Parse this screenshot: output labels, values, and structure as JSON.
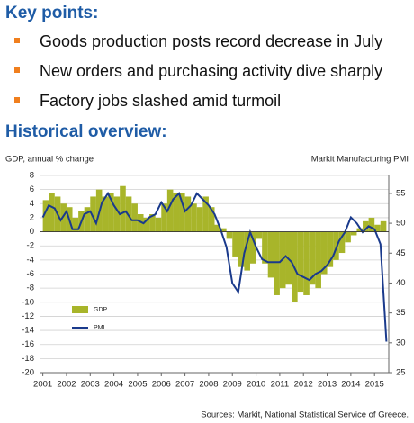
{
  "header": {
    "title": "Key points:"
  },
  "bullets": [
    "Goods production posts record decrease in July",
    "New orders and purchasing activity dive sharply",
    "Factory jobs slashed amid turmoil"
  ],
  "section_title": "Historical overview:",
  "chart_data": {
    "type": "combo",
    "ylabel": "GDP, annual % change",
    "y2label": "Markit Manufacturing PMI",
    "source": "Sources: Markit, National Statistical Service of Greece.",
    "x": [
      2001,
      2001.25,
      2001.5,
      2001.75,
      2002,
      2002.25,
      2002.5,
      2002.75,
      2003,
      2003.25,
      2003.5,
      2003.75,
      2004,
      2004.25,
      2004.5,
      2004.75,
      2005,
      2005.25,
      2005.5,
      2005.75,
      2006,
      2006.25,
      2006.5,
      2006.75,
      2007,
      2007.25,
      2007.5,
      2007.75,
      2008,
      2008.25,
      2008.5,
      2008.75,
      2009,
      2009.25,
      2009.5,
      2009.75,
      2010,
      2010.25,
      2010.5,
      2010.75,
      2011,
      2011.25,
      2011.5,
      2011.75,
      2012,
      2012.25,
      2012.5,
      2012.75,
      2013,
      2013.25,
      2013.5,
      2013.75,
      2014,
      2014.25,
      2014.5,
      2014.75,
      2015,
      2015.25,
      2015.5
    ],
    "series": [
      {
        "name": "GDP",
        "color": "#a8b52a",
        "values": [
          4.5,
          5.5,
          5,
          4,
          3.5,
          2,
          3,
          3.5,
          5,
          6,
          5,
          5.5,
          5,
          6.5,
          5,
          4,
          2.5,
          2,
          2.5,
          2,
          4,
          6,
          5.5,
          5.5,
          5,
          4,
          3.5,
          5,
          3.5,
          1,
          0.5,
          -1,
          -3.5,
          -5,
          -5.5,
          -4.5,
          -1,
          -4.5,
          -6.5,
          -9,
          -8,
          -7.5,
          -10,
          -8.5,
          -9,
          -7.5,
          -8,
          -6,
          -5,
          -4,
          -3,
          -1.5,
          -0.5,
          0.5,
          1.5,
          2,
          1,
          1.5,
          null
        ]
      },
      {
        "name": "PMI",
        "color": "#1a3a8c",
        "axis": "y2",
        "values": [
          51,
          53,
          52.5,
          50.5,
          52,
          49,
          49,
          51.5,
          52,
          50,
          53.5,
          55,
          53,
          51.5,
          52,
          50.5,
          50.5,
          50,
          51,
          51.5,
          53.5,
          52,
          54,
          55,
          52,
          53,
          55,
          54,
          53,
          51.5,
          49,
          46,
          40,
          38.5,
          45,
          48.5,
          46,
          44,
          43.5,
          43.5,
          43.5,
          44.5,
          43.5,
          41.5,
          41,
          40.5,
          41.5,
          42,
          43,
          44.5,
          47,
          48.5,
          51,
          50,
          48.5,
          49.5,
          49,
          46.5,
          30.2
        ]
      }
    ],
    "xlim": [
      2000.9,
      2015.6
    ],
    "xticks": [
      2001,
      2002,
      2003,
      2004,
      2005,
      2006,
      2007,
      2008,
      2009,
      2010,
      2011,
      2012,
      2013,
      2014,
      2015
    ],
    "ylim": [
      -20,
      8
    ],
    "yticks": [
      -20,
      -18,
      -16,
      -14,
      -12,
      -10,
      -8,
      -6,
      -4,
      -2,
      0,
      2,
      4,
      6,
      8
    ],
    "y2lim": [
      25,
      58
    ],
    "y2ticks": [
      25,
      30,
      35,
      40,
      45,
      50,
      55
    ],
    "grid": true,
    "legend": "lower left"
  }
}
